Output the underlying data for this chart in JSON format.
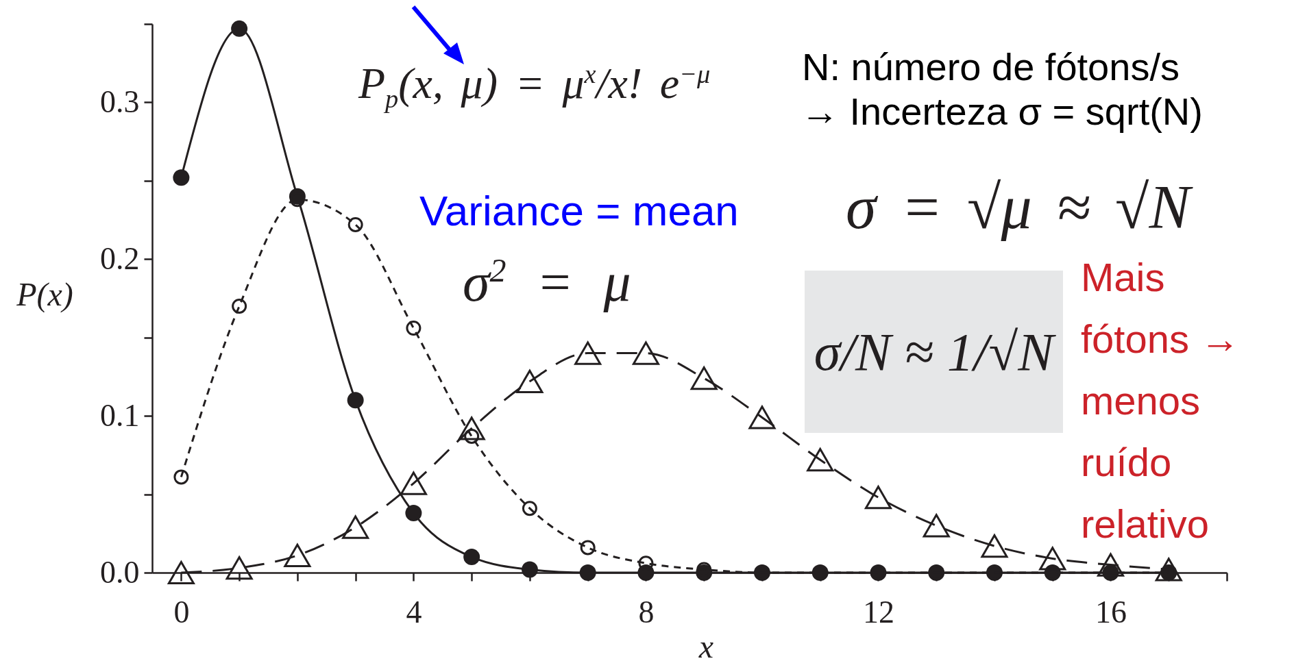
{
  "chart_data": {
    "type": "line",
    "xlabel": "x",
    "ylabel": "P(x)",
    "xlim": [
      -0.5,
      18
    ],
    "ylim": [
      0,
      0.35
    ],
    "xticks": [
      0,
      {
        "value": 1,
        "label": null
      },
      {
        "value": 2,
        "label": null
      },
      {
        "value": 3,
        "label": null
      },
      4,
      {
        "value": 5,
        "label": null
      },
      {
        "value": 6,
        "label": null
      },
      {
        "value": 7,
        "label": null
      },
      8,
      {
        "value": 9,
        "label": null
      },
      {
        "value": 10,
        "label": null
      },
      {
        "value": 11,
        "label": null
      },
      12,
      {
        "value": 13,
        "label": null
      },
      {
        "value": 14,
        "label": null
      },
      {
        "value": 15,
        "label": null
      },
      16,
      {
        "value": 17,
        "label": null
      },
      {
        "value": 18,
        "label": null
      }
    ],
    "yticks": [
      {
        "value": 0,
        "label": "0.0"
      },
      {
        "value": 0.05,
        "label": null
      },
      0.1,
      {
        "value": 0.15,
        "label": null
      },
      0.2,
      {
        "value": 0.25,
        "label": null
      },
      0.3,
      {
        "value": 0.35,
        "label": null
      }
    ],
    "x": [
      0,
      1,
      2,
      3,
      4,
      5,
      6,
      7,
      8,
      9,
      10,
      11,
      12,
      13,
      14,
      15,
      16,
      17
    ],
    "series": [
      {
        "color": "#231f20",
        "marker": "circle",
        "line_style": "solid",
        "values": [
          0.252,
          0.347,
          0.24,
          0.11,
          0.038,
          0.01,
          0.002,
          0,
          0,
          0,
          0,
          0,
          0,
          0,
          0,
          0,
          0,
          0
        ]
      },
      {
        "color": "#231f20",
        "marker": "circle",
        "line_style": "dotted",
        "values": [
          0.061,
          0.17,
          0.238,
          0.222,
          0.156,
          0.087,
          0.041,
          0.016,
          0.006,
          0.002,
          0,
          0,
          0,
          0,
          0,
          0,
          0,
          0
        ]
      },
      {
        "color": "#231f20",
        "marker": "triangle",
        "line_style": "dashed",
        "values": [
          0,
          0.003,
          0.011,
          0.029,
          0.057,
          0.092,
          0.122,
          0.14,
          0.14,
          0.124,
          0.099,
          0.072,
          0.048,
          0.03,
          0.017,
          0.009,
          0.005,
          0.002
        ]
      }
    ],
    "annotations": [
      "P$_{p}$(x, μ) = μ$^{x}$/x! e$^{−μ}$",
      "N: número de fótons/s",
      "→ Incerteza σ = sqrt(N)",
      "Variance = mean",
      "σ = √μ ≈ √N",
      "σ$^{2}$ = μ",
      "σ/N ≈ 1/√N",
      "Mais fótons → menos ruído relativo"
    ]
  }
}
